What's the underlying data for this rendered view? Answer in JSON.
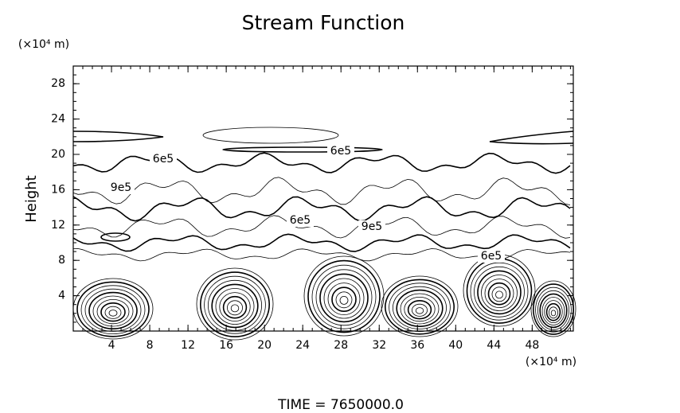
{
  "chart_data": {
    "type": "contour",
    "title": "Stream Function",
    "y_label": "Height",
    "y_unit": "(×10⁴ m)",
    "x_unit": "(×10⁴ m)",
    "footer": "TIME = 7650000.0",
    "xlim": [
      0,
      52.3
    ],
    "ylim": [
      0,
      30
    ],
    "xticks": [
      4,
      8,
      12,
      16,
      20,
      24,
      28,
      32,
      36,
      40,
      44,
      48
    ],
    "yticks": [
      4,
      8,
      12,
      16,
      20,
      24,
      28
    ],
    "annotations": [
      "6e5",
      "6e5",
      "9e5",
      "6e5",
      "9e5",
      "6e5"
    ]
  }
}
